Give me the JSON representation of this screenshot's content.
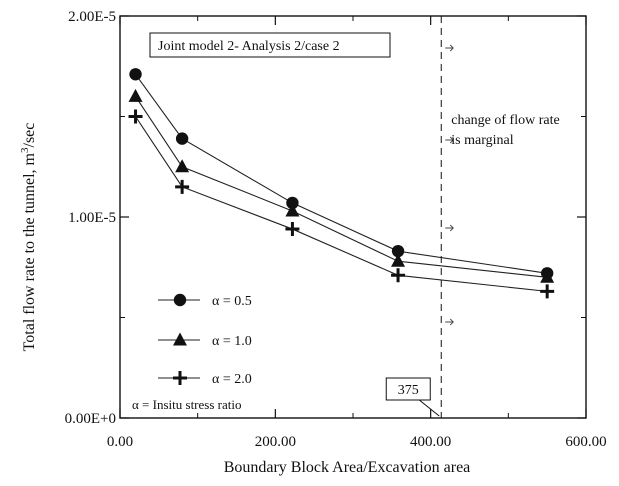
{
  "chart_data": {
    "type": "line",
    "title": "Joint model 2- Analysis 2/case 2",
    "xlabel": "Boundary Block Area/Excavation area",
    "ylabel_main": "Total flow rate to the tunnel, m",
    "ylabel_sup": "3",
    "ylabel_tail": "/sec",
    "xlim": [
      0,
      600
    ],
    "ylim": [
      0,
      2e-05
    ],
    "x_tick_labels": [
      {
        "value": 0,
        "label": "0.00"
      },
      {
        "value": 200,
        "label": "200.00"
      },
      {
        "value": 400,
        "label": "400.00"
      },
      {
        "value": 600,
        "label": "600.00"
      }
    ],
    "y_tick_labels": [
      {
        "value": 0,
        "label": "0.00E+0"
      },
      {
        "value": 1e-05,
        "label": "1.00E-5"
      },
      {
        "value": 2e-05,
        "label": "2.00E-5"
      }
    ],
    "x_minor_ticks": [
      100,
      300,
      500
    ],
    "y_minor_ticks": [
      5e-06,
      1.5e-05
    ],
    "grid": false,
    "legend_position": "left",
    "series": [
      {
        "name": "α = 0.5",
        "marker": "circle",
        "x": [
          20,
          80,
          222,
          358,
          550
        ],
        "y": [
          1.71e-05,
          1.39e-05,
          1.07e-05,
          8.3e-06,
          7.2e-06
        ]
      },
      {
        "name": "α = 1.0",
        "marker": "triangle",
        "x": [
          20,
          80,
          222,
          358,
          550
        ],
        "y": [
          1.6e-05,
          1.25e-05,
          1.03e-05,
          7.8e-06,
          7e-06
        ]
      },
      {
        "name": "α = 2.0",
        "marker": "plus",
        "x": [
          20,
          80,
          222,
          358,
          550
        ],
        "y": [
          1.5e-05,
          1.15e-05,
          9.4e-06,
          7.1e-06,
          6.3e-06
        ]
      }
    ],
    "legend_note": "α  = Insitu stress ratio",
    "reference_line": {
      "x": 375,
      "label": "375"
    },
    "annotation": [
      "change of flow rate",
      "is marginal"
    ]
  }
}
